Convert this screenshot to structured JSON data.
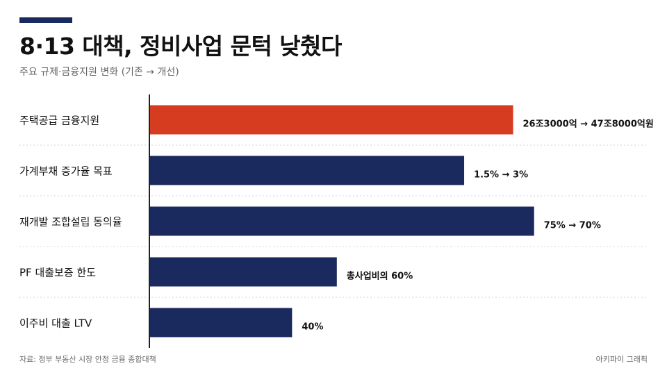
{
  "header": {
    "title": "8·13 대책, 정비사업 문턱 낮췄다",
    "subtitle": "주요 규제·금융지원 변화 (기존 → 개선)"
  },
  "footer": {
    "source": "자료: 정부 부동산 시장 안정 금융 종합대책",
    "credit": "아키파이 그래픽"
  },
  "colors": {
    "highlight": "#d63c20",
    "primary": "#1b2a5e",
    "axis": "#222222",
    "grid": "#d5d5d5"
  },
  "chart_data": {
    "type": "bar",
    "orientation": "horizontal",
    "categories": [
      "주택공급 금융지원",
      "가계부채 증가율 목표",
      "재개발 조합설립 동의율",
      "PF 대출보증 한도",
      "이주비 대출 LTV"
    ],
    "values": [
      26.0,
      22.5,
      27.5,
      13.4,
      10.2
    ],
    "value_labels": [
      "26조3000억 → 47조8000억원",
      "1.5% → 3%",
      "75% → 70%",
      "총사업비의 60%",
      "40%"
    ],
    "highlight_index": 0,
    "xlim": [
      0,
      37
    ],
    "grid": true,
    "title": "8·13 대책, 정비사업 문턱 낮췄다",
    "xlabel": "",
    "ylabel": ""
  }
}
